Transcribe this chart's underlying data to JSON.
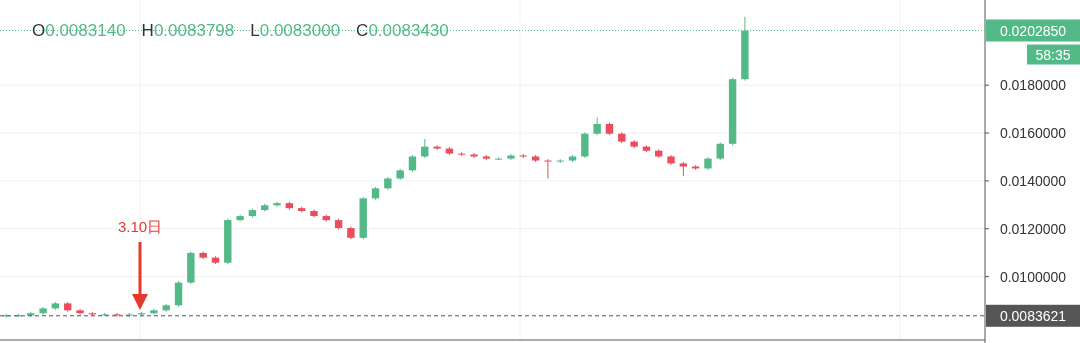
{
  "chart_data": {
    "type": "candlestick",
    "categories": [
      null,
      null,
      null,
      null,
      null,
      null,
      null,
      null,
      null,
      null,
      null,
      null,
      null,
      null,
      null,
      null,
      null,
      null,
      null,
      null,
      null,
      null,
      null,
      null,
      null,
      null,
      null,
      null,
      null,
      null,
      null,
      null,
      null,
      null,
      null,
      null,
      null,
      null,
      null,
      null,
      null,
      null,
      null,
      null,
      null,
      null,
      null,
      null,
      null,
      null,
      null,
      null,
      null,
      null,
      null,
      null,
      null,
      null,
      null,
      null,
      null,
      null,
      null,
      null,
      null,
      null,
      null,
      null,
      null,
      null,
      null,
      null,
      null,
      null,
      null,
      null,
      null,
      null,
      null,
      null
    ],
    "ohlc": [
      [
        0.00835,
        0.00844,
        0.00829,
        0.00838
      ],
      [
        0.00838,
        0.00844,
        0.00832,
        0.00838
      ],
      [
        0.00838,
        0.00853,
        0.00832,
        0.00847
      ],
      [
        0.00847,
        0.00873,
        0.00841,
        0.00867
      ],
      [
        0.00867,
        0.00894,
        0.00861,
        0.00888
      ],
      [
        0.00888,
        0.00894,
        0.00853,
        0.00859
      ],
      [
        0.00859,
        0.00865,
        0.00841,
        0.00847
      ],
      [
        0.00847,
        0.00853,
        0.00836,
        0.00842
      ],
      [
        0.00842,
        0.00848,
        0.00836,
        0.00842
      ],
      [
        0.00842,
        0.00848,
        0.00832,
        0.00838
      ],
      [
        0.00838,
        0.00848,
        0.00832,
        0.00842
      ],
      [
        0.00842,
        0.00853,
        0.00836,
        0.00847
      ],
      [
        0.00847,
        0.00865,
        0.00841,
        0.00859
      ],
      [
        0.00859,
        0.00886,
        0.00853,
        0.0088
      ],
      [
        0.0088,
        0.00981,
        0.00874,
        0.00975
      ],
      [
        0.00975,
        0.01105,
        0.00969,
        0.01099
      ],
      [
        0.01099,
        0.01105,
        0.01073,
        0.01079
      ],
      [
        0.01079,
        0.01085,
        0.01052,
        0.01058
      ],
      [
        0.01058,
        0.01242,
        0.01052,
        0.01236
      ],
      [
        0.01236,
        0.01259,
        0.0123,
        0.01253
      ],
      [
        0.01253,
        0.01284,
        0.01247,
        0.01278
      ],
      [
        0.01278,
        0.01304,
        0.01272,
        0.01298
      ],
      [
        0.01298,
        0.01313,
        0.01292,
        0.01307
      ],
      [
        0.01307,
        0.01313,
        0.0128,
        0.01286
      ],
      [
        0.01286,
        0.01292,
        0.01268,
        0.01274
      ],
      [
        0.01274,
        0.0128,
        0.01247,
        0.01253
      ],
      [
        0.01253,
        0.01259,
        0.0123,
        0.01236
      ],
      [
        0.01236,
        0.01242,
        0.01197,
        0.01203
      ],
      [
        0.01203,
        0.01209,
        0.01156,
        0.01162
      ],
      [
        0.01162,
        0.01333,
        0.01156,
        0.01327
      ],
      [
        0.01327,
        0.01375,
        0.01321,
        0.01369
      ],
      [
        0.01369,
        0.01416,
        0.01363,
        0.0141
      ],
      [
        0.0141,
        0.0145,
        0.01404,
        0.01444
      ],
      [
        0.01444,
        0.01508,
        0.01438,
        0.01502
      ],
      [
        0.01502,
        0.01575,
        0.01496,
        0.01543
      ],
      [
        0.01543,
        0.01549,
        0.01529,
        0.01535
      ],
      [
        0.01535,
        0.01541,
        0.01508,
        0.01514
      ],
      [
        0.01514,
        0.0152,
        0.01504,
        0.0151
      ],
      [
        0.0151,
        0.01516,
        0.01496,
        0.01502
      ],
      [
        0.01502,
        0.01508,
        0.01487,
        0.01493
      ],
      [
        0.01493,
        0.01499,
        0.01487,
        0.01493
      ],
      [
        0.01493,
        0.01512,
        0.01487,
        0.01506
      ],
      [
        0.01506,
        0.01512,
        0.01496,
        0.01502
      ],
      [
        0.01502,
        0.01508,
        0.01479,
        0.01485
      ],
      [
        0.01485,
        0.01491,
        0.0141,
        0.01481
      ],
      [
        0.01481,
        0.01491,
        0.01475,
        0.01485
      ],
      [
        0.01485,
        0.01508,
        0.01479,
        0.01502
      ],
      [
        0.01502,
        0.01603,
        0.01496,
        0.01597
      ],
      [
        0.01597,
        0.01665,
        0.01591,
        0.01638
      ],
      [
        0.01638,
        0.01644,
        0.01591,
        0.01597
      ],
      [
        0.01597,
        0.01603,
        0.01558,
        0.01564
      ],
      [
        0.01564,
        0.0157,
        0.01537,
        0.01543
      ],
      [
        0.01543,
        0.01549,
        0.0152,
        0.01526
      ],
      [
        0.01526,
        0.01532,
        0.01496,
        0.01502
      ],
      [
        0.01502,
        0.01508,
        0.01467,
        0.01473
      ],
      [
        0.01473,
        0.01479,
        0.0142,
        0.0146
      ],
      [
        0.0146,
        0.01466,
        0.01446,
        0.01452
      ],
      [
        0.01452,
        0.01499,
        0.01446,
        0.01493
      ],
      [
        0.01493,
        0.01561,
        0.01487,
        0.01555
      ],
      [
        0.01555,
        0.01831,
        0.01549,
        0.01825
      ],
      [
        0.01825,
        0.02086,
        0.01819,
        0.02028
      ],
      null,
      null,
      null,
      null,
      null,
      null,
      null,
      null,
      null,
      null,
      null,
      null,
      null,
      null,
      null,
      null,
      null,
      null,
      null
    ],
    "colors": [
      "#53b987",
      "#53b987",
      "#53b987",
      "#53b987",
      "#53b987",
      "#eb4d5c",
      "#eb4d5c",
      "#eb4d5c",
      "#53b987",
      "#eb4d5c",
      "#53b987",
      "#53b987",
      "#53b987",
      "#53b987",
      "#53b987",
      "#53b987",
      "#eb4d5c",
      "#eb4d5c",
      "#53b987",
      "#53b987",
      "#53b987",
      "#53b987",
      "#53b987",
      "#eb4d5c",
      "#eb4d5c",
      "#eb4d5c",
      "#eb4d5c",
      "#eb4d5c",
      "#eb4d5c",
      "#53b987",
      "#53b987",
      "#53b987",
      "#53b987",
      "#53b987",
      "#53b987",
      "#eb4d5c",
      "#eb4d5c",
      "#eb4d5c",
      "#eb4d5c",
      "#eb4d5c",
      "#53b987",
      "#53b987",
      "#eb4d5c",
      "#eb4d5c",
      "#eb4d5c",
      "#53b987",
      "#53b987",
      "#53b987",
      "#53b987",
      "#eb4d5c",
      "#eb4d5c",
      "#eb4d5c",
      "#eb4d5c",
      "#eb4d5c",
      "#eb4d5c",
      "#eb4d5c",
      "#eb4d5c",
      "#53b987",
      "#53b987",
      "#53b987",
      "#53b987",
      null,
      null,
      null,
      null,
      null,
      null,
      null,
      null,
      null,
      null,
      null,
      null,
      null,
      null,
      null,
      null,
      null,
      null,
      null
    ],
    "ylim": [
      0.00735,
      0.02156
    ],
    "yticks": [
      {
        "value": 0.01,
        "label": "0.0100000"
      },
      {
        "value": 0.012,
        "label": "0.0120000"
      },
      {
        "value": 0.014,
        "label": "0.0140000"
      },
      {
        "value": 0.016,
        "label": "0.0160000"
      },
      {
        "value": 0.018,
        "label": "0.0180000"
      }
    ],
    "grid": true,
    "ref_lines": [
      {
        "axis": "y",
        "value": 0.020285,
        "label": "0.0202850",
        "color": "#53b987",
        "line_style": "dotted"
      },
      {
        "axis": "y",
        "value": 0.0083621,
        "label": "0.0083621",
        "color": "#555555",
        "line_style": "dashed"
      }
    ],
    "annotations": [
      "O0.0083140",
      "H0.0083798",
      "L0.0083000",
      "C0.0083430",
      "58:35",
      "3.10日"
    ]
  }
}
